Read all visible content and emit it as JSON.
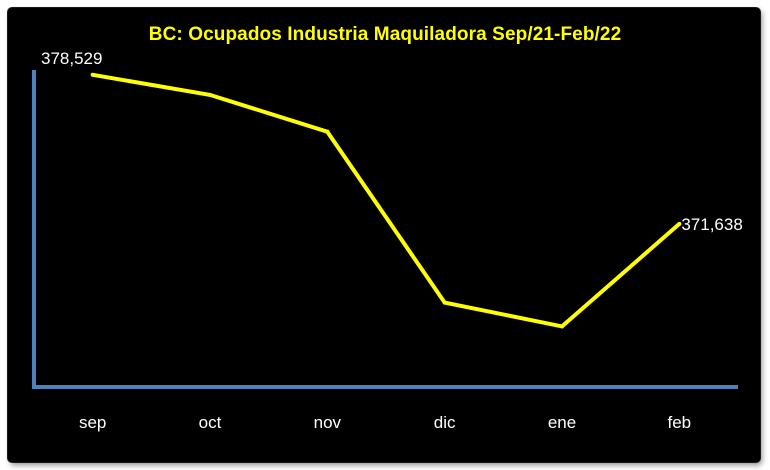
{
  "chart_data": {
    "type": "line",
    "title": "BC: Ocupados Industria Maquiladora Sep/21-Feb/22",
    "categories": [
      "sep",
      "oct",
      "nov",
      "dic",
      "ene",
      "feb"
    ],
    "values": [
      378529,
      377600,
      375900,
      368000,
      366900,
      371638
    ],
    "data_labels": [
      {
        "index": 0,
        "text": "378,529"
      },
      {
        "index": 5,
        "text": "371,638"
      }
    ],
    "xlabel": "",
    "ylabel": "",
    "ylim": [
      364100,
      378750
    ],
    "grid": false,
    "legend": "none",
    "line_color": "#ffff00",
    "axis_color": "#4f81bd",
    "background": "#000000",
    "text_color": "#ffffff",
    "title_color": "#ffff00"
  }
}
